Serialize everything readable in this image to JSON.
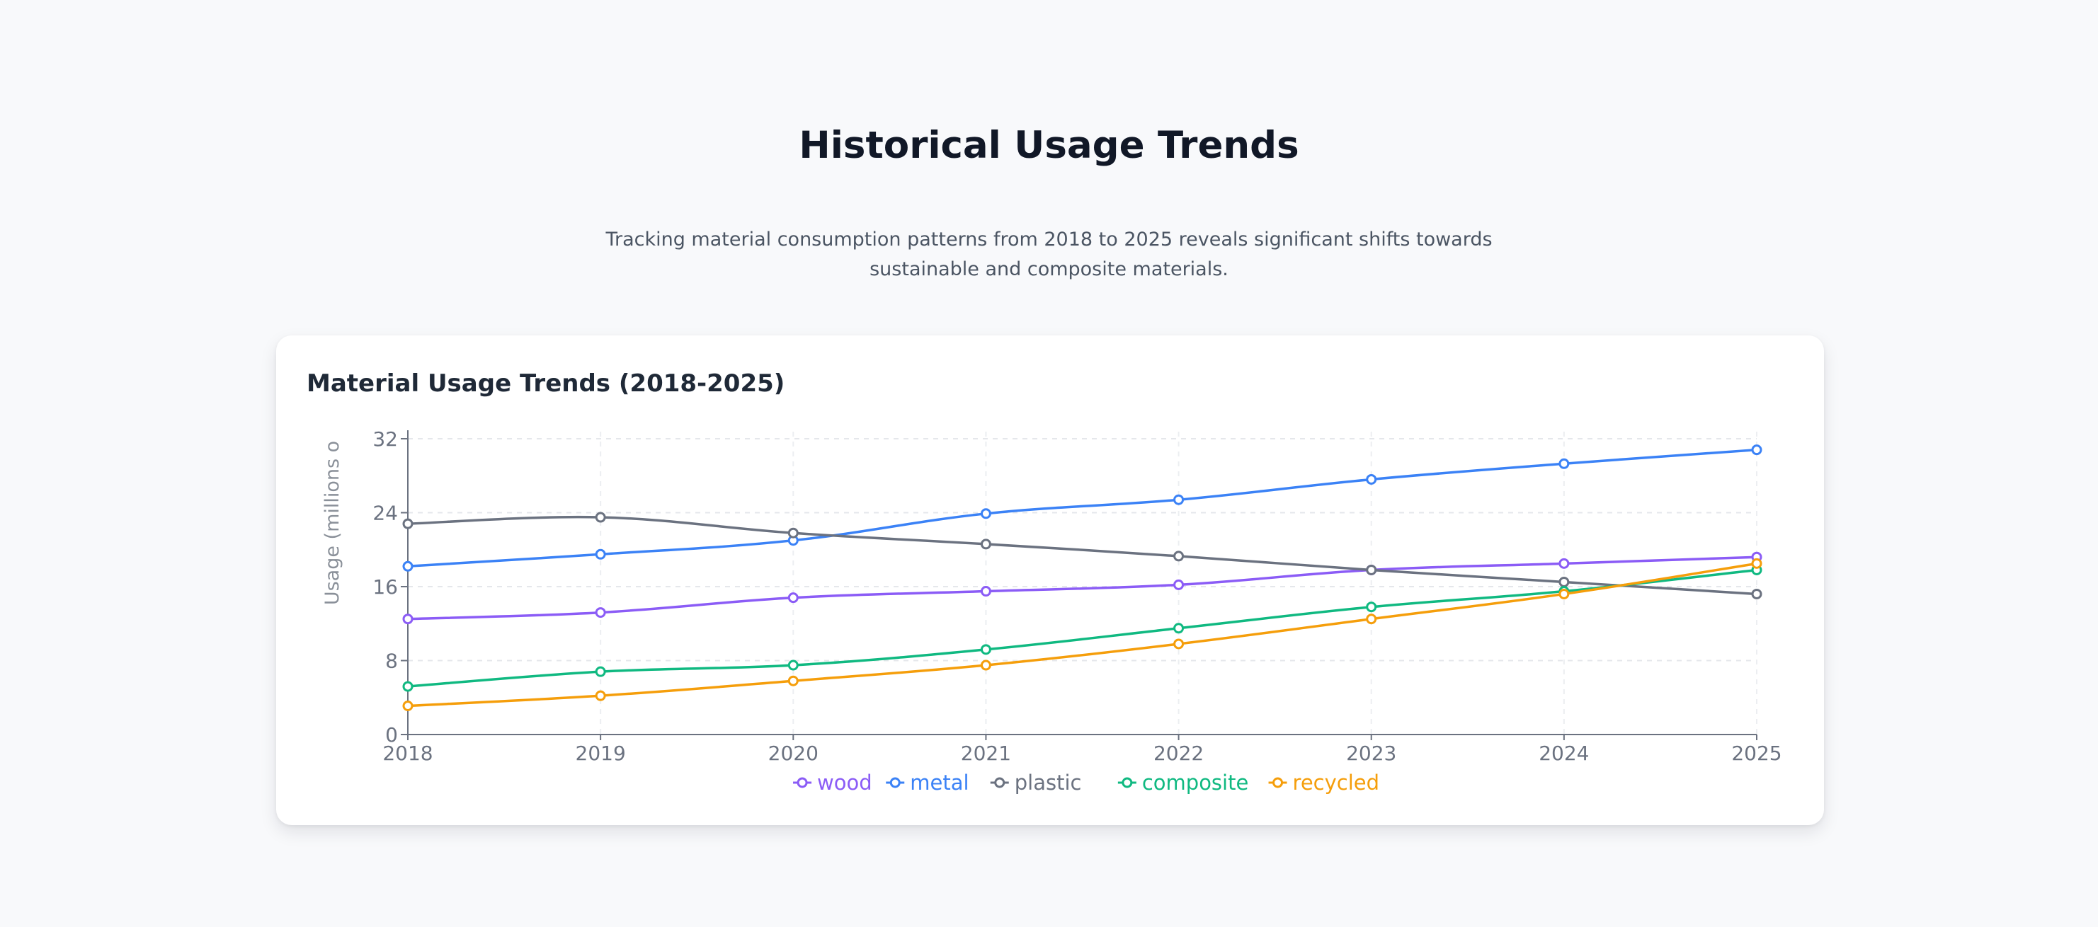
{
  "page": {
    "title": "Historical Usage Trends",
    "subtitle": "Tracking material consumption patterns from 2018 to 2025 reveals significant shifts towards sustainable and composite materials."
  },
  "card": {
    "title": "Material Usage Trends (2018-2025)"
  },
  "chart_data": {
    "type": "line",
    "title": "Material Usage Trends (2018-2025)",
    "xlabel": "",
    "ylabel": "Usage (millions o",
    "x": [
      "2018",
      "2019",
      "2020",
      "2021",
      "2022",
      "2023",
      "2024",
      "2025"
    ],
    "ylim": [
      0,
      32
    ],
    "yticks": [
      0,
      8,
      16,
      24,
      32
    ],
    "grid": true,
    "legend_position": "bottom-center",
    "series": [
      {
        "name": "wood",
        "color": "#8b5cf6",
        "values": [
          12.5,
          13.2,
          14.8,
          15.5,
          16.2,
          17.8,
          18.5,
          19.2
        ]
      },
      {
        "name": "metal",
        "color": "#3b82f6",
        "values": [
          18.2,
          19.5,
          21.0,
          23.9,
          25.4,
          27.6,
          29.3,
          30.8
        ]
      },
      {
        "name": "plastic",
        "color": "#6b7280",
        "values": [
          22.8,
          23.5,
          21.8,
          20.6,
          19.3,
          17.8,
          16.5,
          15.2
        ]
      },
      {
        "name": "composite",
        "color": "#10b981",
        "values": [
          5.2,
          6.8,
          7.5,
          9.2,
          11.5,
          13.8,
          15.5,
          17.8
        ]
      },
      {
        "name": "recycled",
        "color": "#f59e0b",
        "values": [
          3.1,
          4.2,
          5.8,
          7.5,
          9.8,
          12.5,
          15.2,
          18.5
        ]
      }
    ]
  }
}
